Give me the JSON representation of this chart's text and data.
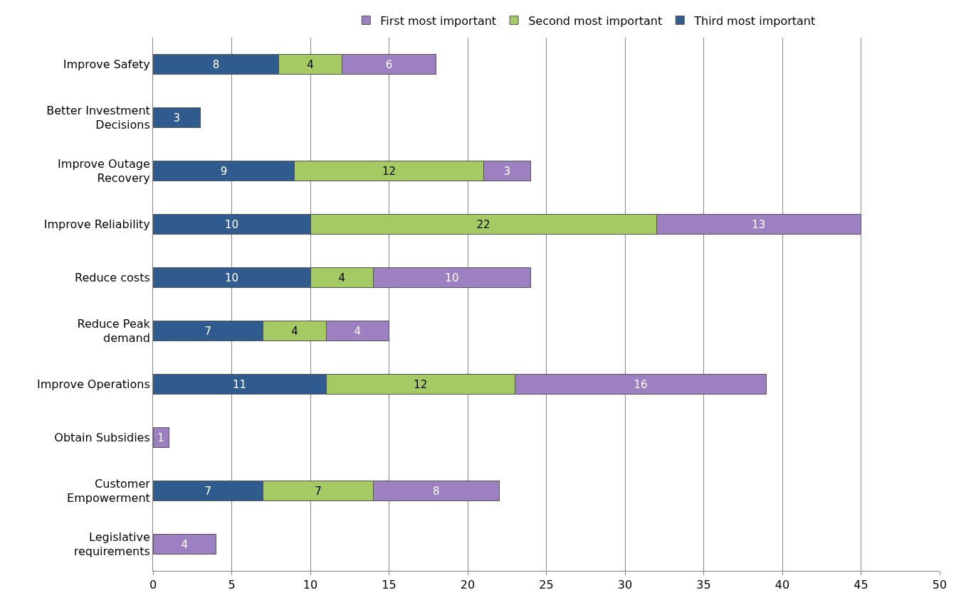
{
  "chart_data": {
    "type": "bar",
    "orientation": "horizontal",
    "stacked": true,
    "categories": [
      "Improve Safety",
      "Better Investment\nDecisions",
      "Improve Outage\nRecovery",
      "Improve Reliability",
      "Reduce costs",
      "Reduce Peak\ndemand",
      "Improve Operations",
      "Obtain Subsidies",
      "Customer\nEmpowerment",
      "Legislative\nrequirements"
    ],
    "series": [
      {
        "name": "Third most important",
        "color": "#2f5b8f",
        "values": [
          8,
          3,
          9,
          10,
          10,
          7,
          11,
          null,
          7,
          null
        ]
      },
      {
        "name": "Second most important",
        "color": "#a5c963",
        "values": [
          4,
          null,
          12,
          22,
          4,
          4,
          12,
          null,
          7,
          null
        ]
      },
      {
        "name": "First most important",
        "color": "#9c80c2",
        "values": [
          6,
          null,
          3,
          13,
          10,
          4,
          16,
          1,
          8,
          4
        ]
      }
    ],
    "xlim": [
      0,
      50
    ],
    "xticks": [
      0,
      5,
      10,
      15,
      20,
      25,
      30,
      35,
      40,
      45,
      50
    ],
    "grid": "x",
    "legend": "top",
    "data_labels": true
  }
}
